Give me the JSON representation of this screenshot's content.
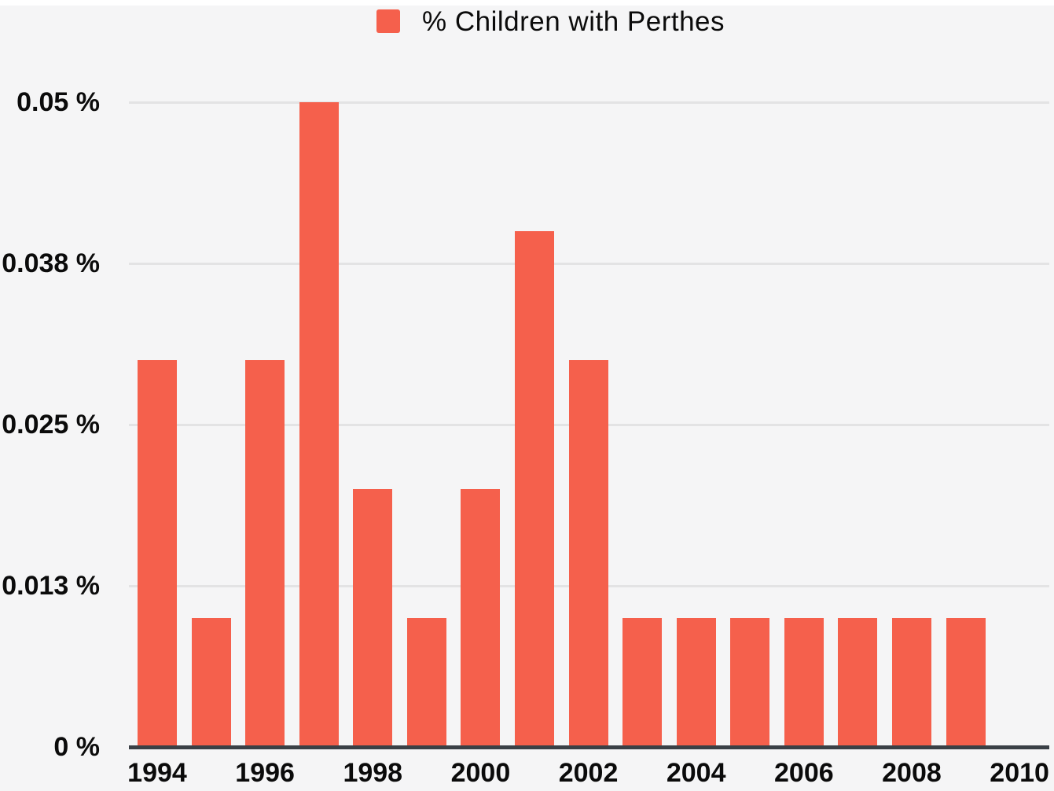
{
  "chart_data": {
    "type": "bar",
    "title": "",
    "xlabel": "",
    "ylabel": "",
    "legend": "% Children with Perthes",
    "legend_position": "top-center",
    "categories": [
      1994,
      1995,
      1996,
      1997,
      1998,
      1999,
      2000,
      2001,
      2002,
      2003,
      2004,
      2005,
      2006,
      2007,
      2008,
      2009
    ],
    "values": [
      0.03,
      0.01,
      0.03,
      0.05,
      0.02,
      0.01,
      0.02,
      0.04,
      0.03,
      0.01,
      0.01,
      0.01,
      0.01,
      0.01,
      0.01,
      0.01
    ],
    "x_tick_labels": [
      "1994",
      "1996",
      "1998",
      "2000",
      "2002",
      "2004",
      "2006",
      "2008",
      "2010"
    ],
    "x_tick_years": [
      1994,
      1996,
      1998,
      2000,
      2002,
      2004,
      2006,
      2008,
      2010
    ],
    "y_tick_labels": [
      "0 %",
      "0.013 %",
      "0.025 %",
      "0.038 %",
      "0.05 %"
    ],
    "y_tick_values": [
      0,
      0.0125,
      0.025,
      0.0375,
      0.05
    ],
    "ylim": [
      0,
      0.05
    ],
    "grid": "horizontal",
    "colors": {
      "bar": "#f5604c",
      "axis": "#3a4046",
      "gridline": "#e3e3e4",
      "background": "#f5f5f6",
      "text": "#0b0b0b"
    }
  }
}
